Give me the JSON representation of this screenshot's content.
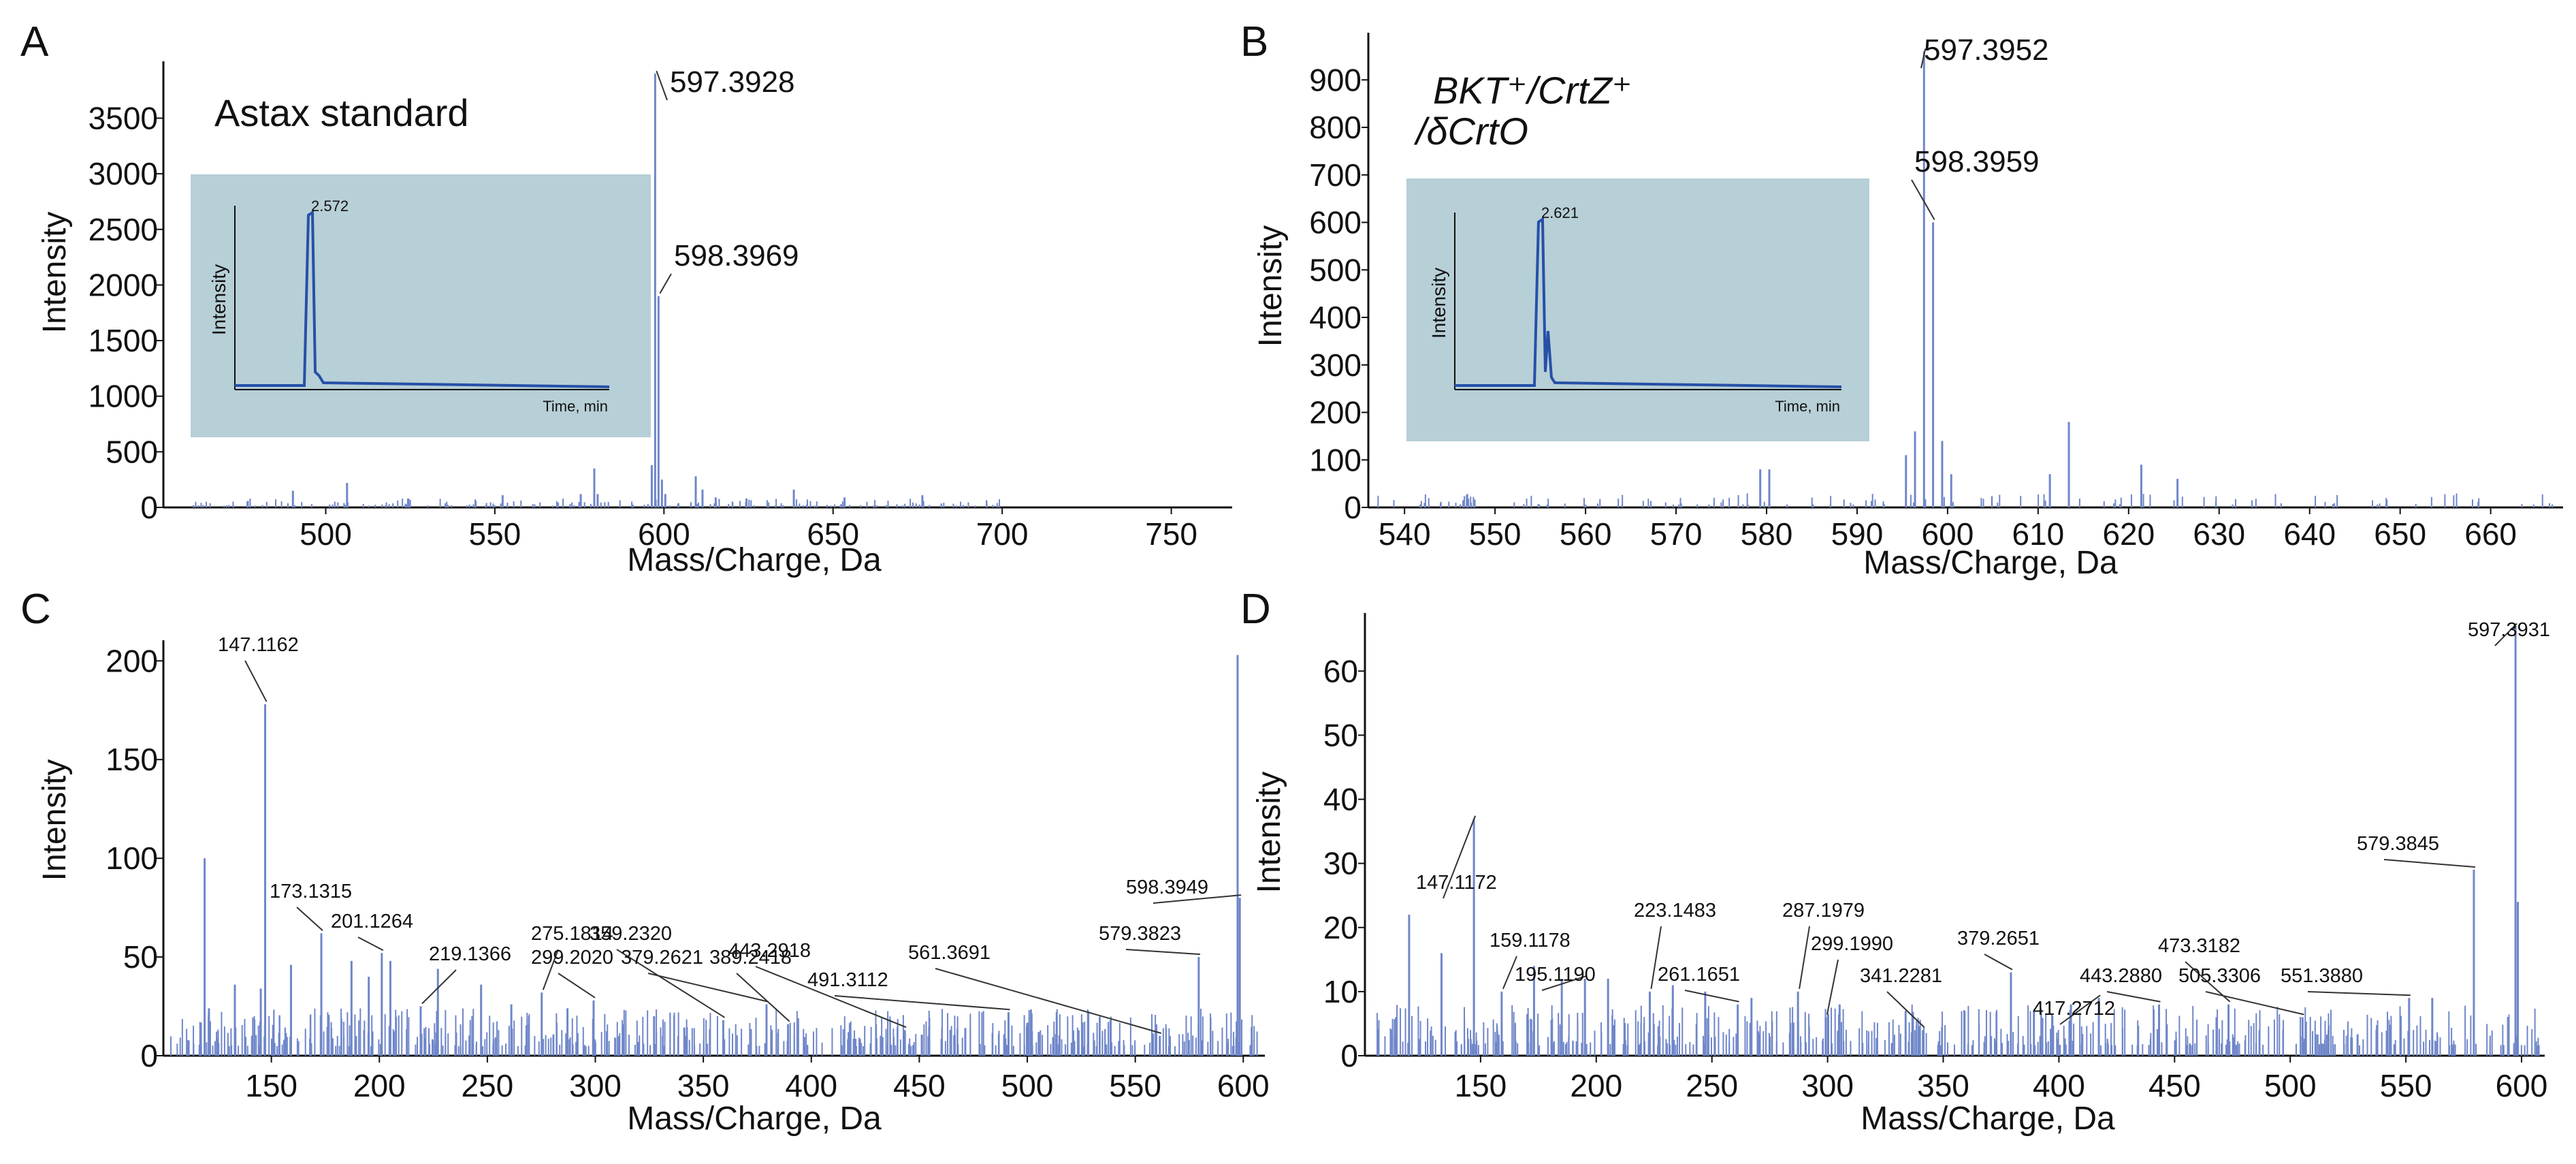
{
  "colors": {
    "peak": "#6f86c9",
    "peak_dark": "#2f4fa6",
    "inset_bg": "#b7cfd6",
    "inset_trace": "#2650a8",
    "axis": "#111111"
  },
  "chart_data": [
    {
      "id": "A",
      "type": "bar",
      "letter": "A",
      "title": "Astax standard",
      "xlabel": "Mass/Charge, Da",
      "ylabel": "Intensity",
      "xlim": [
        452,
        768
      ],
      "ylim": [
        0,
        3950
      ],
      "xticks": [
        500,
        550,
        600,
        650,
        700,
        750
      ],
      "yticks": [
        0,
        500,
        1000,
        1500,
        2000,
        2500,
        3000,
        3500
      ],
      "peaks": [
        [
          597.3928,
          3900
        ],
        [
          598.3969,
          1900
        ],
        [
          596.4,
          380
        ],
        [
          599.4,
          250
        ],
        [
          600.4,
          120
        ],
        [
          579.4,
          350
        ],
        [
          580.4,
          120
        ],
        [
          609.4,
          280
        ],
        [
          611.4,
          160
        ],
        [
          615.3,
          90
        ],
        [
          638.4,
          160
        ],
        [
          624.4,
          80
        ],
        [
          490.3,
          150
        ],
        [
          506.3,
          220
        ],
        [
          552.3,
          110
        ],
        [
          575.4,
          120
        ],
        [
          653.4,
          90
        ],
        [
          676.4,
          110
        ]
      ],
      "noise": {
        "from": 456,
        "to": 700,
        "count": 170,
        "max": 80,
        "seed": 11
      },
      "labels": [
        {
          "x": 597.3928,
          "y": 3900,
          "text": "597.3928"
        },
        {
          "x": 598.3969,
          "y": 1900,
          "text": "598.3969"
        }
      ],
      "inset": {
        "ylabel": "Intensity",
        "xlabel": "Time, min",
        "peak_label": "2.572",
        "peak_pos": 0.2,
        "tail": 0.015
      }
    },
    {
      "id": "B",
      "type": "bar",
      "letter": "B",
      "title_line1": "BKT⁺/CrtZ⁺",
      "title_line2": "/δCrtO",
      "xlabel": "Mass/Charge, Da",
      "ylabel": "Intensity",
      "xlim": [
        536,
        668
      ],
      "ylim": [
        0,
        985
      ],
      "xticks": [
        540,
        550,
        560,
        570,
        580,
        590,
        600,
        610,
        620,
        630,
        640,
        650,
        660
      ],
      "yticks": [
        0,
        100,
        200,
        300,
        400,
        500,
        600,
        700,
        800,
        900
      ],
      "peaks": [
        [
          597.3952,
          960
        ],
        [
          598.3959,
          600
        ],
        [
          596.4,
          160
        ],
        [
          595.4,
          110
        ],
        [
          599.4,
          140
        ],
        [
          600.4,
          70
        ],
        [
          613.4,
          180
        ],
        [
          579.3,
          80
        ],
        [
          580.3,
          80
        ],
        [
          621.4,
          90
        ],
        [
          611.3,
          70
        ],
        [
          625.4,
          60
        ]
      ],
      "noise": {
        "from": 537,
        "to": 667,
        "count": 130,
        "max": 30,
        "seed": 23
      },
      "labels": [
        {
          "x": 597.3952,
          "y": 960,
          "text": "597.3952"
        },
        {
          "x": 598.3959,
          "y": 600,
          "text": "598.3959"
        }
      ],
      "inset": {
        "ylabel": "Intensity",
        "xlabel": "Time, min",
        "peak_label": "2.621",
        "peak_pos": 0.22,
        "tail": 0.12
      }
    },
    {
      "id": "C",
      "type": "bar",
      "letter": "C",
      "xlabel": "Mass/Charge, Da",
      "ylabel": "Intensity",
      "xlim": [
        100,
        610
      ],
      "ylim": [
        0,
        207
      ],
      "xticks": [
        150,
        200,
        250,
        300,
        350,
        400,
        450,
        500,
        550,
        600
      ],
      "yticks": [
        0,
        50,
        100,
        150,
        200
      ],
      "peaks": [
        [
          597.39,
          203
        ],
        [
          598.3949,
          80
        ],
        [
          147.1162,
          178
        ],
        [
          119.1,
          100
        ],
        [
          579.3823,
          50
        ],
        [
          173.1315,
          62
        ],
        [
          201.1264,
          52
        ],
        [
          219.1366,
          25
        ],
        [
          275.1814,
          32
        ],
        [
          299.202,
          28
        ],
        [
          359.232,
          18
        ],
        [
          379.2621,
          26
        ],
        [
          389.2418,
          16
        ],
        [
          443.2918,
          13
        ],
        [
          491.3112,
          22
        ],
        [
          561.3691,
          10
        ],
        [
          187.1,
          48
        ],
        [
          195.1,
          40
        ],
        [
          205.1,
          48
        ],
        [
          227.1,
          44
        ],
        [
          247.1,
          36
        ],
        [
          159.1,
          46
        ],
        [
          133.1,
          36
        ],
        [
          121.1,
          24
        ],
        [
          145.1,
          34
        ],
        [
          261.1,
          26
        ],
        [
          287.1,
          24
        ],
        [
          327.2,
          20
        ],
        [
          341.2,
          14
        ],
        [
          417.3,
          12
        ],
        [
          471.3,
          14
        ],
        [
          513.3,
          11
        ],
        [
          505.3,
          12
        ]
      ],
      "noise": {
        "from": 102,
        "to": 608,
        "count": 520,
        "max": 24,
        "seed": 37
      },
      "labels": [
        {
          "x": 147.1162,
          "y": 178,
          "text": "147.1162"
        },
        {
          "x": 173.1315,
          "y": 62,
          "text": "173.1315"
        },
        {
          "x": 201.1264,
          "y": 52,
          "text": "201.1264"
        },
        {
          "x": 219.1366,
          "y": 25,
          "text": "219.1366"
        },
        {
          "x": 275.1814,
          "y": 32,
          "text": "275.1814"
        },
        {
          "x": 299.202,
          "y": 28,
          "text": "299.2020"
        },
        {
          "x": 359.232,
          "y": 18,
          "text": "359.2320"
        },
        {
          "x": 379.2621,
          "y": 26,
          "text": "379.2621"
        },
        {
          "x": 389.2418,
          "y": 16,
          "text": "389.2418"
        },
        {
          "x": 443.2918,
          "y": 13,
          "text": "443.2918"
        },
        {
          "x": 491.3112,
          "y": 22,
          "text": "491.3112"
        },
        {
          "x": 561.3691,
          "y": 10,
          "text": "561.3691"
        },
        {
          "x": 579.3823,
          "y": 50,
          "text": "579.3823"
        },
        {
          "x": 598.3949,
          "y": 80,
          "text": "598.3949"
        }
      ]
    },
    {
      "id": "D",
      "type": "bar",
      "letter": "D",
      "xlabel": "Mass/Charge, Da",
      "ylabel": "Intensity",
      "xlim": [
        100,
        610
      ],
      "ylim": [
        0,
        68
      ],
      "xticks": [
        150,
        200,
        250,
        300,
        350,
        400,
        450,
        500,
        550,
        600
      ],
      "yticks": [
        0,
        10,
        20,
        30,
        40,
        50,
        60
      ],
      "peaks": [
        [
          597.3931,
          67
        ],
        [
          598.39,
          24
        ],
        [
          579.3845,
          29
        ],
        [
          147.1172,
          37
        ],
        [
          119.1,
          22
        ],
        [
          159.1178,
          10
        ],
        [
          195.119,
          12
        ],
        [
          223.1483,
          10
        ],
        [
          261.1651,
          8
        ],
        [
          287.1979,
          10
        ],
        [
          299.199,
          6
        ],
        [
          341.2281,
          4
        ],
        [
          379.2651,
          13
        ],
        [
          417.2712,
          9
        ],
        [
          443.288,
          8
        ],
        [
          473.3182,
          8
        ],
        [
          505.3306,
          6
        ],
        [
          551.388,
          9
        ],
        [
          561.4,
          9
        ],
        [
          133.1,
          16
        ],
        [
          173.1,
          14
        ],
        [
          185.1,
          12
        ],
        [
          205.1,
          12
        ],
        [
          233.1,
          11
        ],
        [
          247.1,
          10
        ],
        [
          267.1,
          9
        ],
        [
          305.2,
          8
        ],
        [
          359.2,
          7
        ],
        [
          389.2,
          7
        ],
        [
          405.2,
          8
        ]
      ],
      "noise": {
        "from": 102,
        "to": 608,
        "count": 520,
        "max": 8,
        "seed": 53
      },
      "labels": [
        {
          "x": 147.1172,
          "y": 37,
          "text": "147.1172"
        },
        {
          "x": 159.1178,
          "y": 10,
          "text": "159.1178"
        },
        {
          "x": 195.119,
          "y": 12,
          "text": "195.1190"
        },
        {
          "x": 223.1483,
          "y": 10,
          "text": "223.1483"
        },
        {
          "x": 261.1651,
          "y": 8,
          "text": "261.1651"
        },
        {
          "x": 287.1979,
          "y": 10,
          "text": "287.1979"
        },
        {
          "x": 299.199,
          "y": 6,
          "text": "299.1990"
        },
        {
          "x": 341.2281,
          "y": 4,
          "text": "341.2281"
        },
        {
          "x": 379.2651,
          "y": 13,
          "text": "379.2651"
        },
        {
          "x": 417.2712,
          "y": 9,
          "text": "417.2712"
        },
        {
          "x": 443.288,
          "y": 8,
          "text": "443.2880"
        },
        {
          "x": 473.3182,
          "y": 8,
          "text": "473.3182"
        },
        {
          "x": 505.3306,
          "y": 6,
          "text": "505.3306"
        },
        {
          "x": 551.388,
          "y": 9,
          "text": "551.3880"
        },
        {
          "x": 579.3845,
          "y": 29,
          "text": "579.3845"
        },
        {
          "x": 597.3931,
          "y": 67,
          "text": "597.3931"
        }
      ]
    }
  ]
}
